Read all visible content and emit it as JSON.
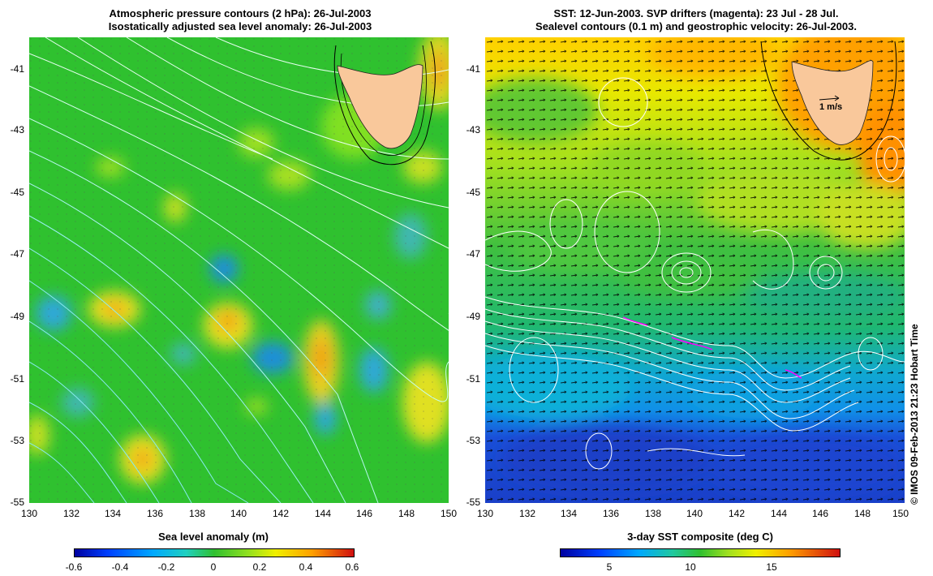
{
  "left_panel": {
    "title_line1": "Atmospheric pressure contours (2 hPa): 26-Jul-2003",
    "title_line2": "Isostatically adjusted sea level anomaly: 26-Jul-2003",
    "y_ticks": [
      "-41",
      "-43",
      "-45",
      "-47",
      "-49",
      "-51",
      "-53",
      "-55"
    ],
    "x_ticks": [
      "130",
      "132",
      "134",
      "136",
      "138",
      "140",
      "142",
      "144",
      "146",
      "148",
      "150"
    ],
    "colorbar_label": "Sea level anomaly (m)",
    "colorbar_ticks": [
      "-0.6",
      "-0.4",
      "-0.2",
      "0",
      "0.2",
      "0.4",
      "0.6"
    ]
  },
  "right_panel": {
    "title_line1": "SST: 12-Jun-2003. SVP drifters (magenta): 23 Jul - 28 Jul.",
    "title_line2": "Sealevel contours (0.1 m) and geostrophic velocity: 26-Jul-2003.",
    "y_ticks": [
      "-41",
      "-43",
      "-45",
      "-47",
      "-49",
      "-51",
      "-53",
      "-55"
    ],
    "x_ticks": [
      "130",
      "132",
      "134",
      "136",
      "138",
      "140",
      "142",
      "144",
      "146",
      "148",
      "150"
    ],
    "scale_arrow_label": "1 m/s",
    "colorbar_label": "3-day SST composite (deg C)",
    "colorbar_ticks": [
      "5",
      "10",
      "15"
    ]
  },
  "credit": "© IMOS 09-Feb-2013 21:23 Hobart Time",
  "colors": {
    "land": "#f9c89b",
    "sla_background": "#2fc12f",
    "sst_warm": "#ffa500",
    "sst_cold": "#1a3fd0",
    "pressure_contour": "#8ef0f0",
    "sealevel_contour": "#ffffff",
    "drifter": "#ff00ff"
  }
}
